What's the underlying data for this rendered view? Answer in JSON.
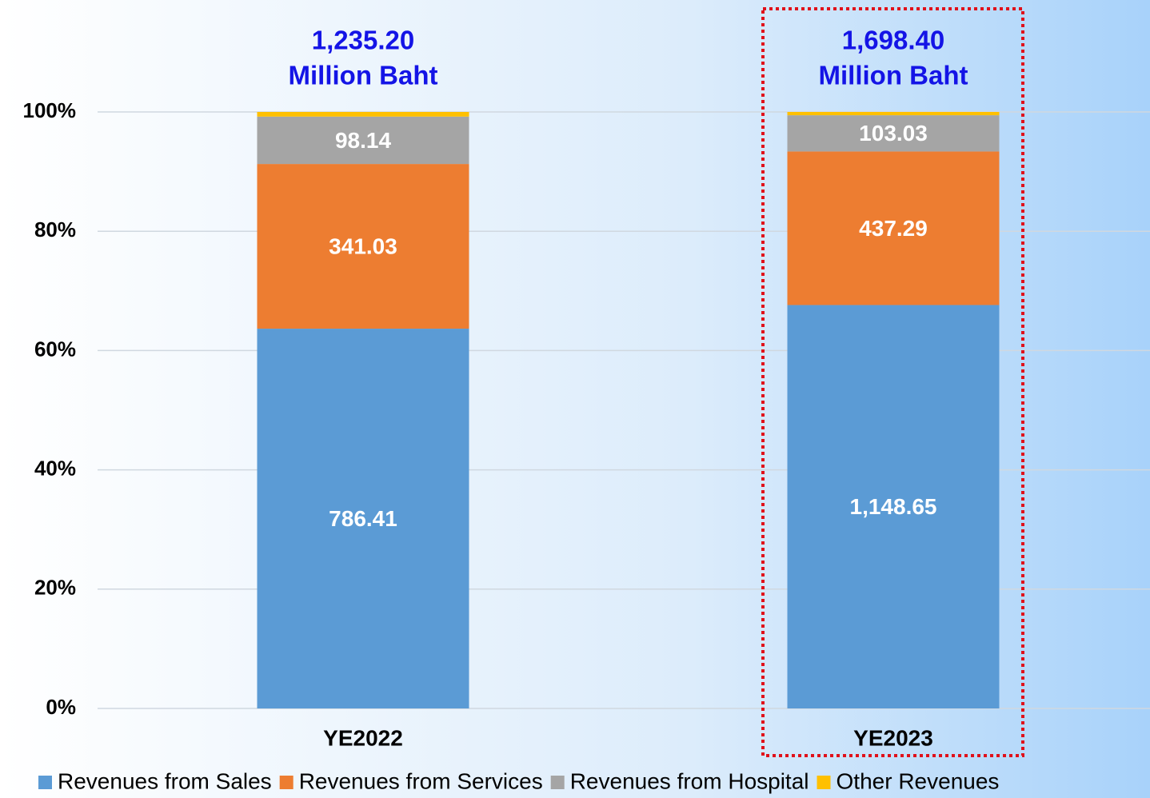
{
  "chart_data": {
    "type": "bar",
    "stacking": "percent",
    "categories": [
      "YE2022",
      "YE2023"
    ],
    "series": [
      {
        "name": "Revenues from Sales",
        "color": "#5b9bd5",
        "values": [
          786.41,
          1148.65
        ],
        "value_labels": [
          "786.41",
          "1,148.65"
        ]
      },
      {
        "name": "Revenues from Services",
        "color": "#ed7d31",
        "values": [
          341.03,
          437.29
        ]
      },
      {
        "name": "Revenues from Hospital",
        "color": "#a5a5a5",
        "values": [
          98.14,
          103.03
        ]
      },
      {
        "name": "Other Revenues",
        "color": "#ffc000",
        "values": [
          9.62,
          9.43
        ]
      }
    ],
    "labelled_series": [
      0,
      1,
      2
    ],
    "total_labels": [
      "1,235.20",
      "1,698.40"
    ],
    "total_unit": "Million Baht",
    "ylim": [
      0,
      100
    ],
    "yticks": [
      {
        "value": 0,
        "label": "0%"
      },
      {
        "value": 20,
        "label": "20%"
      },
      {
        "value": 40,
        "label": "40%"
      },
      {
        "value": 60,
        "label": "60%"
      },
      {
        "value": 80,
        "label": "80%"
      },
      {
        "value": 100,
        "label": "100%"
      }
    ],
    "grid": true,
    "legend": "bottom",
    "highlight_index": 1
  }
}
